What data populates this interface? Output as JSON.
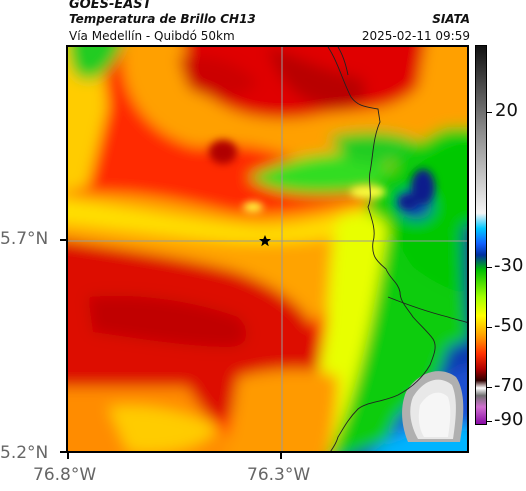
{
  "header": {
    "satellite": "GOES-EAST",
    "product": "Temperatura de Brillo CH13",
    "region": "Vía Medellín - Quibdó 50km",
    "agency": "SIATA",
    "timestamp": "2025-02-11 09:59"
  },
  "axes": {
    "y_ticks": [
      "5.7°N",
      "5.2°N"
    ],
    "x_ticks": [
      "76.8°W",
      "76.3°W"
    ]
  },
  "colorbar": {
    "ticks": [
      "20",
      "-30",
      "-50",
      "-70",
      "-90"
    ]
  },
  "map": {
    "marker": "star",
    "marker_color": "#000000",
    "gridlines": true
  },
  "colors": {
    "warm_red": "#ff2a00",
    "orange": "#ff8c00",
    "yellow": "#ffff00",
    "green": "#00d000",
    "cyan": "#00b4ff",
    "navy": "#0a1e8c"
  }
}
